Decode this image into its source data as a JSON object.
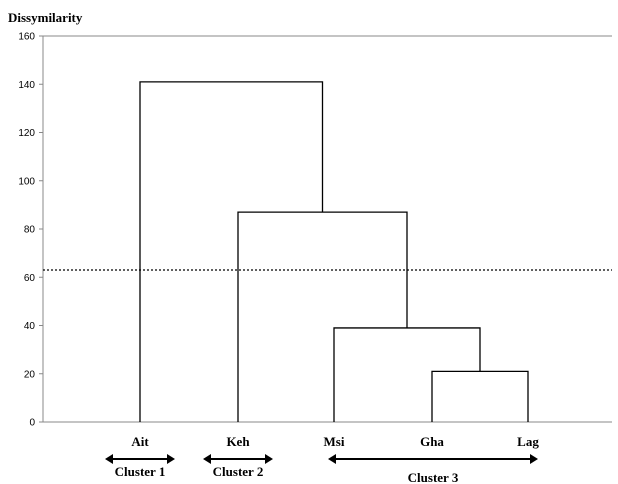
{
  "chart_data": {
    "type": "dendrogram",
    "ylabel": "Dissymilarity",
    "ylim": [
      0,
      160
    ],
    "yticks": [
      0,
      20,
      40,
      60,
      80,
      100,
      120,
      140,
      160
    ],
    "leaves": [
      "Ait",
      "Keh",
      "Msi",
      "Gha",
      "Lag"
    ],
    "merges": [
      {
        "left": "Gha",
        "right": "Lag",
        "height": 21
      },
      {
        "left": "Msi",
        "right": "Gha+Lag",
        "height": 39
      },
      {
        "left": "Keh",
        "right": "Msi+Gha+Lag",
        "height": 87
      },
      {
        "left": "Ait",
        "right": "Keh+Msi+Gha+Lag",
        "height": 141
      }
    ],
    "cut_line": {
      "value": 63,
      "style": "dotted"
    },
    "clusters": [
      {
        "label": "Cluster 1",
        "members": [
          "Ait"
        ]
      },
      {
        "label": "Cluster 2",
        "members": [
          "Keh"
        ]
      },
      {
        "label": "Cluster 3",
        "members": [
          "Msi",
          "Gha",
          "Lag"
        ]
      }
    ]
  }
}
